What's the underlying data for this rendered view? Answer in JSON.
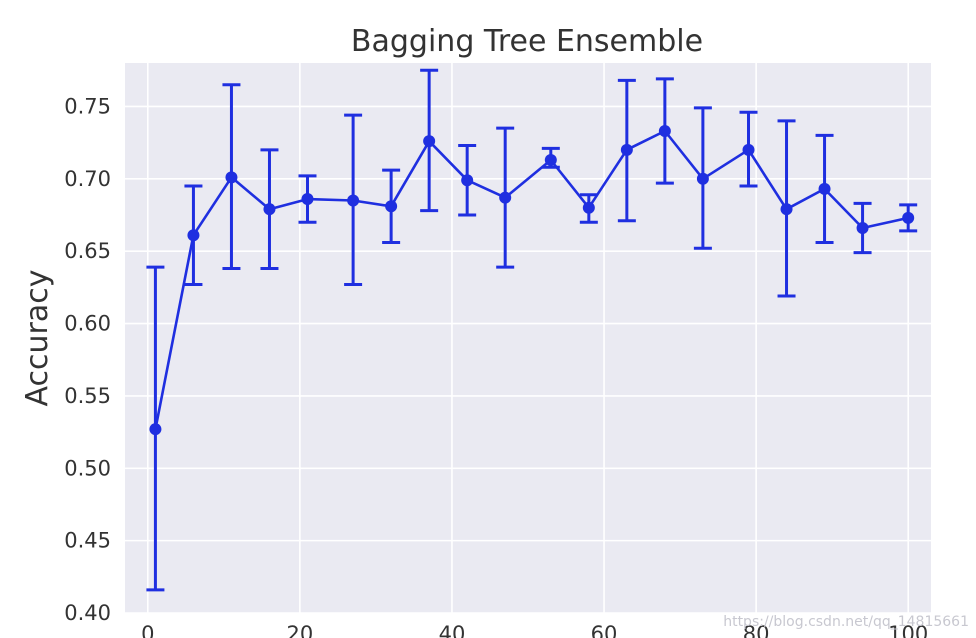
{
  "chart_data": {
    "type": "line",
    "title": "Bagging Tree Ensemble",
    "xlabel": "",
    "ylabel": "Accuracy",
    "xlim": [
      -3,
      103
    ],
    "ylim": [
      0.4,
      0.78
    ],
    "xticks": [
      0,
      20,
      40,
      60,
      80,
      100
    ],
    "yticks": [
      0.4,
      0.45,
      0.5,
      0.55,
      0.6,
      0.65,
      0.7,
      0.75
    ],
    "grid": true,
    "error_bars": true,
    "series": [
      {
        "name": "",
        "color": "#1f2fe0",
        "x": [
          1,
          6,
          11,
          16,
          21,
          27,
          32,
          37,
          42,
          47,
          53,
          58,
          63,
          68,
          73,
          79,
          84,
          89,
          94,
          100
        ],
        "y": [
          0.527,
          0.661,
          0.701,
          0.679,
          0.686,
          0.685,
          0.681,
          0.726,
          0.699,
          0.687,
          0.713,
          0.68,
          0.72,
          0.733,
          0.7,
          0.72,
          0.679,
          0.693,
          0.666,
          0.673
        ],
        "yerr_low": [
          0.111,
          0.034,
          0.063,
          0.041,
          0.016,
          0.058,
          0.025,
          0.048,
          0.024,
          0.048,
          0.005,
          0.01,
          0.049,
          0.036,
          0.048,
          0.025,
          0.06,
          0.037,
          0.017,
          0.009
        ],
        "yerr_high": [
          0.112,
          0.034,
          0.064,
          0.041,
          0.016,
          0.059,
          0.025,
          0.049,
          0.024,
          0.048,
          0.008,
          0.009,
          0.048,
          0.036,
          0.049,
          0.026,
          0.061,
          0.037,
          0.017,
          0.009
        ]
      }
    ]
  },
  "watermark": "https://blog.csdn.net/qq_14815661"
}
